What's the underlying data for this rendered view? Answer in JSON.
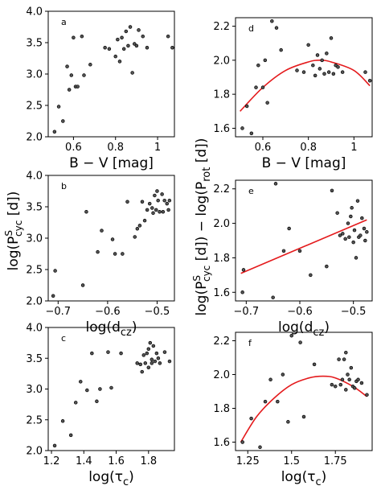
{
  "chart_data": [
    {
      "panel": "a",
      "type": "scatter",
      "xlabel": "B − V [mag]",
      "ylabel": "",
      "xlim": [
        0.48,
        1.08
      ],
      "ylim": [
        2.0,
        4.0
      ],
      "xticks": [
        0.6,
        0.8,
        1.0
      ],
      "yticks": [
        2.0,
        2.5,
        3.0,
        3.5,
        4.0
      ],
      "x": [
        0.51,
        0.53,
        0.55,
        0.57,
        0.58,
        0.59,
        0.6,
        0.61,
        0.62,
        0.64,
        0.65,
        0.68,
        0.75,
        0.77,
        0.8,
        0.81,
        0.82,
        0.83,
        0.84,
        0.85,
        0.86,
        0.87,
        0.88,
        0.89,
        0.9,
        0.91,
        0.93,
        0.95,
        1.05,
        1.07
      ],
      "y": [
        2.08,
        2.48,
        2.25,
        3.12,
        2.75,
        2.98,
        3.58,
        2.8,
        2.8,
        3.6,
        2.98,
        3.15,
        3.42,
        3.4,
        3.28,
        3.55,
        3.2,
        3.58,
        3.4,
        3.68,
        3.45,
        3.75,
        3.02,
        3.48,
        3.45,
        3.7,
        3.6,
        3.42,
        3.6,
        3.42
      ],
      "fit": null
    },
    {
      "panel": "b",
      "type": "scatter",
      "xlabel": "log(d_cz)",
      "ylabel": "log(P^S_cyc [d])",
      "xlim": [
        -0.72,
        -0.465
      ],
      "ylim": [
        2.0,
        4.0
      ],
      "xticks": [
        -0.7,
        -0.6,
        -0.5
      ],
      "yticks": [
        2.0,
        2.5,
        3.0,
        3.5,
        4.0
      ],
      "x": [
        -0.71,
        -0.706,
        -0.65,
        -0.643,
        -0.62,
        -0.612,
        -0.59,
        -0.585,
        -0.57,
        -0.56,
        -0.545,
        -0.54,
        -0.535,
        -0.53,
        -0.525,
        -0.52,
        -0.515,
        -0.51,
        -0.508,
        -0.505,
        -0.502,
        -0.5,
        -0.498,
        -0.495,
        -0.49,
        -0.488,
        -0.485,
        -0.48,
        -0.477,
        -0.475
      ],
      "y": [
        2.08,
        2.48,
        2.25,
        3.42,
        2.78,
        3.12,
        2.98,
        2.75,
        2.75,
        3.58,
        3.02,
        3.15,
        3.2,
        3.58,
        3.28,
        3.45,
        3.55,
        3.48,
        3.4,
        3.68,
        3.45,
        3.75,
        3.6,
        3.42,
        3.7,
        3.42,
        3.6,
        3.55,
        3.45,
        3.6
      ],
      "fit": null
    },
    {
      "panel": "c",
      "type": "scatter",
      "xlabel": "log(τ_c)",
      "ylabel": "",
      "xlim": [
        1.18,
        1.96
      ],
      "ylim": [
        2.0,
        4.0
      ],
      "xticks": [
        1.2,
        1.4,
        1.6,
        1.8
      ],
      "yticks": [
        2.0,
        2.5,
        3.0,
        3.5,
        4.0
      ],
      "x": [
        1.22,
        1.27,
        1.32,
        1.35,
        1.38,
        1.42,
        1.45,
        1.48,
        1.5,
        1.55,
        1.57,
        1.63,
        1.73,
        1.75,
        1.76,
        1.77,
        1.78,
        1.79,
        1.8,
        1.8,
        1.81,
        1.82,
        1.82,
        1.83,
        1.84,
        1.85,
        1.86,
        1.87,
        1.9,
        1.93
      ],
      "y": [
        2.08,
        2.48,
        2.25,
        2.78,
        3.12,
        2.98,
        3.58,
        2.8,
        3.0,
        3.6,
        3.02,
        3.58,
        3.42,
        3.4,
        3.28,
        3.55,
        3.42,
        3.58,
        3.65,
        3.35,
        3.75,
        3.48,
        3.42,
        3.7,
        3.45,
        3.58,
        3.5,
        3.42,
        3.6,
        3.45
      ],
      "fit": null
    },
    {
      "panel": "d",
      "type": "scatter",
      "xlabel": "B − V [mag]",
      "ylabel": "",
      "xlim": [
        0.48,
        1.08
      ],
      "ylim": [
        1.55,
        2.25
      ],
      "xticks": [
        0.6,
        0.8,
        1.0
      ],
      "yticks": [
        1.6,
        1.8,
        2.0,
        2.2
      ],
      "x": [
        0.51,
        0.53,
        0.55,
        0.57,
        0.58,
        0.6,
        0.61,
        0.62,
        0.64,
        0.66,
        0.68,
        0.75,
        0.78,
        0.8,
        0.82,
        0.83,
        0.84,
        0.85,
        0.86,
        0.87,
        0.88,
        0.89,
        0.9,
        0.91,
        0.92,
        0.93,
        0.95,
        1.05,
        1.07
      ],
      "y": [
        1.6,
        1.73,
        1.57,
        1.84,
        1.97,
        1.84,
        2.0,
        1.75,
        2.23,
        2.19,
        2.06,
        1.94,
        1.93,
        2.09,
        1.97,
        1.91,
        2.03,
        1.95,
        2.0,
        1.92,
        2.04,
        1.93,
        2.13,
        1.92,
        1.97,
        1.96,
        1.93,
        1.93,
        1.88
      ],
      "fit": {
        "color": "#e41a1c",
        "curve": "quadratic",
        "x": [
          0.5,
          0.6,
          0.7,
          0.8,
          0.85,
          0.9,
          1.0,
          1.07
        ],
        "y": [
          1.7,
          1.84,
          1.94,
          1.99,
          2.0,
          1.99,
          1.94,
          1.85
        ]
      }
    },
    {
      "panel": "e",
      "type": "scatter",
      "xlabel": "log(d_cz)",
      "ylabel": "log(P^S_cyc [d]) − log(P_rot [d])",
      "xlim": [
        -0.72,
        -0.465
      ],
      "ylim": [
        1.55,
        2.25
      ],
      "xticks": [
        -0.7,
        -0.6,
        -0.5
      ],
      "yticks": [
        1.6,
        1.8,
        2.0,
        2.2
      ],
      "x": [
        -0.707,
        -0.705,
        -0.65,
        -0.645,
        -0.63,
        -0.62,
        -0.6,
        -0.58,
        -0.55,
        -0.54,
        -0.53,
        -0.525,
        -0.52,
        -0.515,
        -0.51,
        -0.508,
        -0.505,
        -0.503,
        -0.5,
        -0.498,
        -0.495,
        -0.492,
        -0.49,
        -0.487,
        -0.484,
        -0.48,
        -0.478,
        -0.475
      ],
      "y": [
        1.6,
        1.73,
        1.57,
        2.23,
        1.84,
        1.97,
        1.84,
        1.7,
        1.75,
        2.19,
        2.06,
        1.93,
        1.94,
        1.91,
        2.0,
        1.92,
        2.04,
        2.09,
        1.89,
        1.96,
        1.8,
        2.13,
        1.92,
        1.93,
        2.03,
        1.97,
        1.9,
        1.95
      ],
      "fit": {
        "color": "#e41a1c",
        "curve": "linear",
        "x": [
          -0.71,
          -0.475
        ],
        "y": [
          1.71,
          2.02
        ]
      }
    },
    {
      "panel": "f",
      "type": "scatter",
      "xlabel": "log(τ_c)",
      "ylabel": "",
      "xlim": [
        1.18,
        1.96
      ],
      "ylim": [
        1.55,
        2.25
      ],
      "xticks": [
        1.25,
        1.5,
        1.75
      ],
      "yticks": [
        1.6,
        1.8,
        2.0,
        2.2
      ],
      "x": [
        1.22,
        1.27,
        1.32,
        1.35,
        1.38,
        1.42,
        1.45,
        1.48,
        1.5,
        1.55,
        1.57,
        1.63,
        1.73,
        1.75,
        1.77,
        1.78,
        1.79,
        1.8,
        1.81,
        1.81,
        1.82,
        1.83,
        1.84,
        1.85,
        1.86,
        1.87,
        1.88,
        1.9,
        1.93
      ],
      "y": [
        1.6,
        1.74,
        1.57,
        1.84,
        1.97,
        1.84,
        2.0,
        1.72,
        2.23,
        2.19,
        1.75,
        2.06,
        1.94,
        1.93,
        2.09,
        1.94,
        1.97,
        2.09,
        1.91,
        2.13,
        2.0,
        1.97,
        2.04,
        1.93,
        1.92,
        1.96,
        1.97,
        1.95,
        1.88
      ],
      "fit": {
        "color": "#e41a1c",
        "curve": "quadratic",
        "x": [
          1.21,
          1.3,
          1.4,
          1.5,
          1.6,
          1.68,
          1.75,
          1.85,
          1.93
        ],
        "y": [
          1.6,
          1.75,
          1.86,
          1.94,
          1.98,
          1.99,
          1.98,
          1.93,
          1.87
        ]
      }
    }
  ]
}
